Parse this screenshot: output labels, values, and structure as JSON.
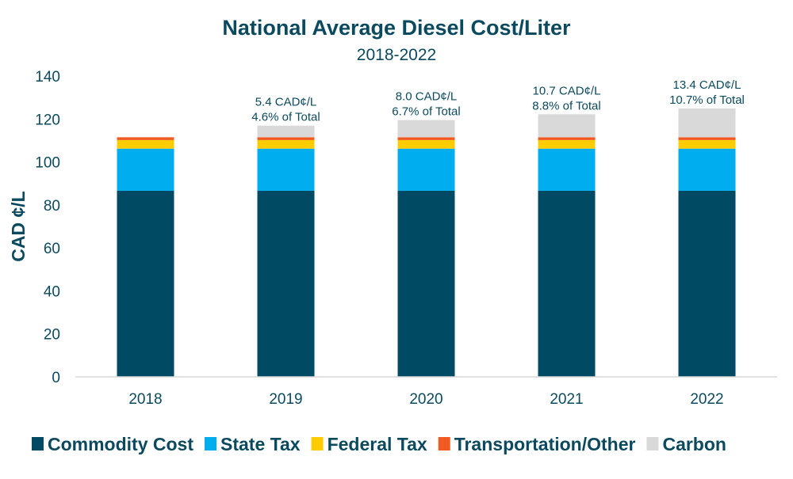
{
  "chart_data": {
    "type": "bar",
    "stacked": true,
    "title": "National Average Diesel Cost/Liter",
    "subtitle": "2018-2022",
    "xlabel": "",
    "ylabel": "CAD ¢/L",
    "ylim": [
      0,
      140
    ],
    "yticks": [
      0,
      20,
      40,
      60,
      80,
      100,
      120,
      140
    ],
    "grid": false,
    "legend_position": "bottom",
    "categories": [
      "2018",
      "2019",
      "2020",
      "2021",
      "2022"
    ],
    "series": [
      {
        "name": "Commodity Cost",
        "color": "#004a63",
        "values": [
          86.6,
          86.6,
          86.6,
          86.6,
          86.6
        ]
      },
      {
        "name": "State Tax",
        "color": "#00aeef",
        "values": [
          19.6,
          19.6,
          19.6,
          19.6,
          19.6
        ]
      },
      {
        "name": "Federal Tax",
        "color": "#ffcc00",
        "values": [
          4.0,
          4.0,
          4.0,
          4.0,
          4.0
        ]
      },
      {
        "name": "Transportation/Other",
        "color": "#f15a22",
        "values": [
          1.3,
          1.3,
          1.3,
          1.3,
          1.3
        ]
      },
      {
        "name": "Carbon",
        "color": "#d9d9d9",
        "values": [
          0,
          5.4,
          8.0,
          10.7,
          13.4
        ]
      }
    ],
    "annotations": [
      null,
      [
        "5.4 CAD¢/L",
        "4.6% of Total"
      ],
      [
        "8.0 CAD¢/L",
        "6.7% of Total"
      ],
      [
        "10.7 CAD¢/L",
        "8.8% of Total"
      ],
      [
        "13.4 CAD¢/L",
        "10.7% of Total"
      ]
    ]
  }
}
